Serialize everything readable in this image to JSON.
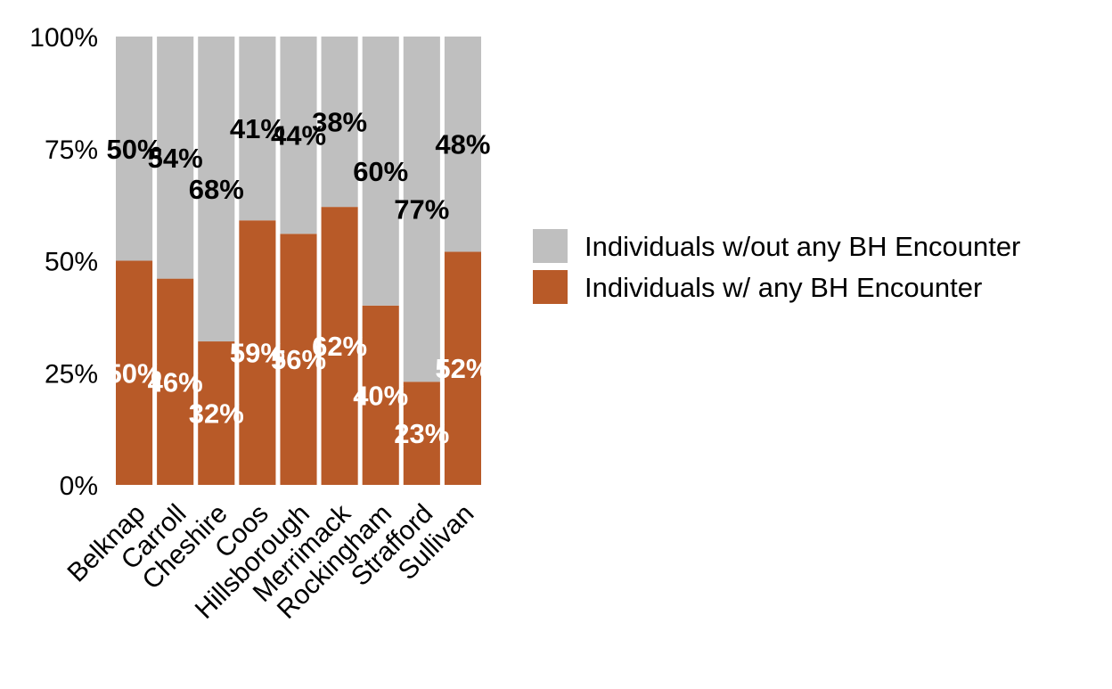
{
  "chart_data": {
    "type": "bar",
    "stacked": true,
    "categories": [
      "Belknap",
      "Carroll",
      "Cheshire",
      "Coos",
      "Hillsborough",
      "Merrimack",
      "Rockingham",
      "Strafford",
      "Sullivan"
    ],
    "series": [
      {
        "name": "Individuals w/ any BH Encounter",
        "values": [
          50,
          46,
          32,
          59,
          56,
          62,
          40,
          23,
          52
        ],
        "labels": [
          "50%",
          "46%",
          "32%",
          "59%",
          "56%",
          "62%",
          "40%",
          "23%",
          "52%"
        ],
        "color": "#B85A28",
        "label_color": "#FFFFFF"
      },
      {
        "name": "Individuals w/out any BH Encounter",
        "values": [
          50,
          54,
          68,
          41,
          44,
          38,
          60,
          77,
          48
        ],
        "labels": [
          "50%",
          "54%",
          "68%",
          "41%",
          "44%",
          "38%",
          "60%",
          "77%",
          "48%"
        ],
        "color": "#BFBFBF",
        "label_color": "#000000"
      }
    ],
    "y_ticks": [
      0,
      25,
      50,
      75,
      100
    ],
    "y_tick_labels": [
      "0%",
      "25%",
      "50%",
      "75%",
      "100%"
    ],
    "ylim": [
      0,
      100
    ],
    "title": "",
    "xlabel": "",
    "ylabel": "",
    "grid": false,
    "legend": {
      "placement": "right",
      "entries": [
        "Individuals w/out any BH Encounter",
        "Individuals w/ any BH Encounter"
      ]
    }
  }
}
